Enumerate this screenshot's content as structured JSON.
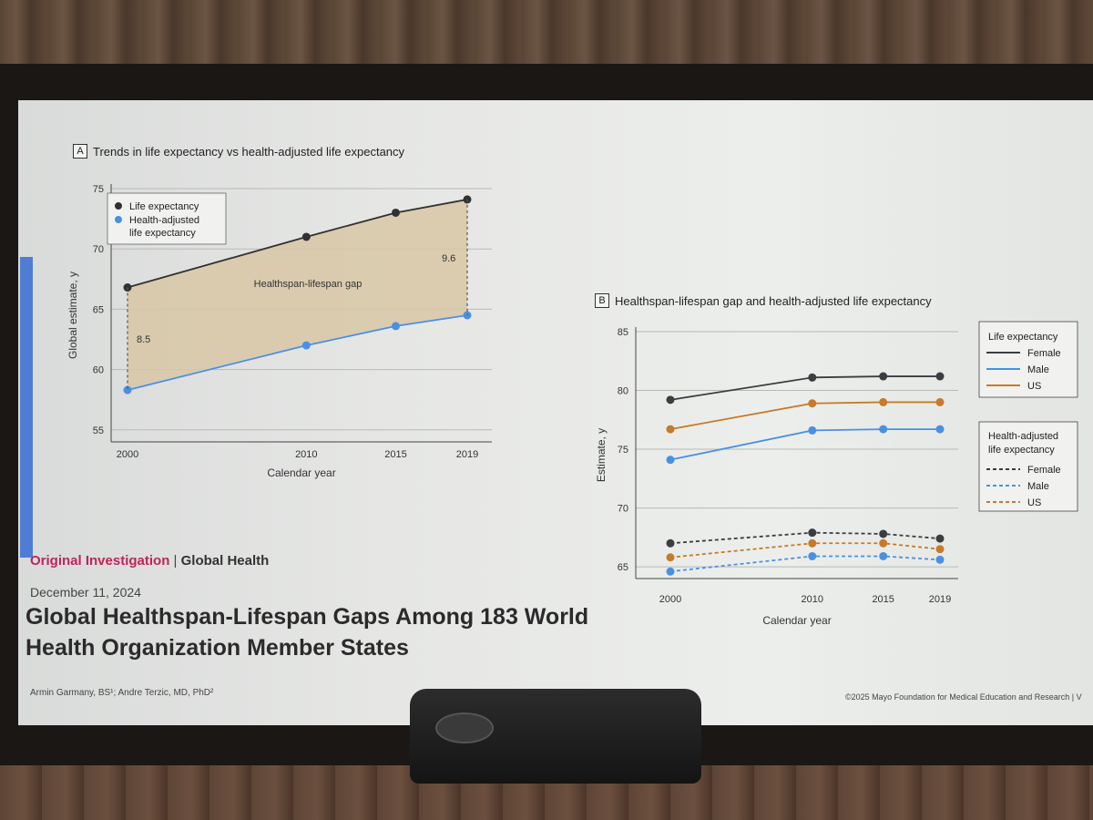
{
  "panel_a": {
    "box": "A",
    "title": "Trends in life expectancy vs health-adjusted life expectancy",
    "legend": [
      "Life expectancy",
      "Health-adjusted",
      "life expectancy"
    ],
    "gap_label": "Healthspan-lifespan gap"
  },
  "panel_b": {
    "box": "B",
    "title": "Healthspan-lifespan gap and health-adjusted life expectancy",
    "legend_le_title": "Life expectancy",
    "legend_hale_title": [
      "Health-adjusted",
      "life expectancy"
    ],
    "legend_items": [
      "Female",
      "Male",
      "US"
    ]
  },
  "article": {
    "tag": "Original Investigation",
    "separator": "|",
    "topic": "Global Health",
    "date": "December 11, 2024",
    "title": "Global Healthspan-Lifespan Gaps Among 183 World Health Organization Member States",
    "authors": "Armin Garmany, BS¹; Andre Terzic, MD, PhD²",
    "copyright": "©2025 Mayo Foundation for Medical Education and Research  |  V"
  },
  "colors": {
    "life_expectancy_a": "#2f3133",
    "hale_a": "#4a90e2",
    "gap_fill": "#d8c7a6",
    "female": "#3b3d40",
    "male": "#4a90e2",
    "us": "#c77a2a"
  },
  "chart_data": [
    {
      "type": "area",
      "title": "Trends in life expectancy vs health-adjusted life expectancy",
      "xlabel": "Calendar year",
      "ylabel": "Global estimate, y",
      "x": [
        2000,
        2010,
        2015,
        2019
      ],
      "xticks": [
        "2000",
        "2010",
        "2015",
        "2019"
      ],
      "yticks": [
        "55",
        "60",
        "65",
        "70",
        "75"
      ],
      "ylim": [
        54,
        75
      ],
      "grid": true,
      "legend_position": "top-left",
      "series": [
        {
          "name": "Life expectancy",
          "values": [
            66.8,
            71.0,
            73.0,
            74.1
          ]
        },
        {
          "name": "Health-adjusted life expectancy",
          "values": [
            58.3,
            62.0,
            63.6,
            64.5
          ]
        }
      ],
      "annotations": [
        {
          "text": "8.5",
          "x": 2000
        },
        {
          "text": "9.6",
          "x": 2019
        },
        {
          "text": "Healthspan-lifespan gap"
        }
      ]
    },
    {
      "type": "line",
      "title": "Healthspan-lifespan gap and health-adjusted life expectancy",
      "xlabel": "Calendar year",
      "ylabel": "Estimate, y",
      "x": [
        2000,
        2010,
        2015,
        2019
      ],
      "xticks": [
        "2000",
        "2010",
        "2015",
        "2019"
      ],
      "yticks": [
        "65",
        "70",
        "75",
        "80",
        "85"
      ],
      "ylim": [
        64,
        85
      ],
      "grid": true,
      "legend_position": "right",
      "series": [
        {
          "group": "Life expectancy",
          "name": "Female",
          "style": "solid",
          "color": "#3b3d40",
          "values": [
            79.2,
            81.1,
            81.2,
            81.2
          ]
        },
        {
          "group": "Life expectancy",
          "name": "Male",
          "style": "solid",
          "color": "#4a90e2",
          "values": [
            74.1,
            76.6,
            76.7,
            76.7
          ]
        },
        {
          "group": "Life expectancy",
          "name": "US",
          "style": "solid",
          "color": "#c77a2a",
          "values": [
            76.7,
            78.9,
            79.0,
            79.0
          ]
        },
        {
          "group": "Health-adjusted life expectancy",
          "name": "Female",
          "style": "dashed",
          "color": "#3b3d40",
          "values": [
            67.0,
            67.9,
            67.8,
            67.4
          ]
        },
        {
          "group": "Health-adjusted life expectancy",
          "name": "Male",
          "style": "dashed",
          "color": "#4a90e2",
          "values": [
            64.6,
            65.9,
            65.9,
            65.6
          ]
        },
        {
          "group": "Health-adjusted life expectancy",
          "name": "US",
          "style": "dashed",
          "color": "#c77a2a",
          "values": [
            65.8,
            67.0,
            67.0,
            66.5
          ]
        }
      ]
    }
  ]
}
